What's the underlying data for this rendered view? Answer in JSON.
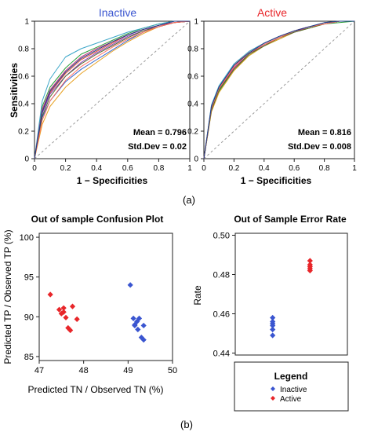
{
  "colors": {
    "inactive": "#3a55d0",
    "active": "#e8262a",
    "diag": "#9a9a9a",
    "axis": "#222222",
    "roc_palette": [
      "#3366cc",
      "#e0533a",
      "#2a9d3a",
      "#8a3db8",
      "#e8a020",
      "#3aa6c8",
      "#c03a7a",
      "#556b2f",
      "#ff6f61",
      "#1f3c88"
    ]
  },
  "panel_a": {
    "label": "(a)",
    "charts": [
      {
        "title": "Inactive",
        "stat_mean": "Mean = 0.796",
        "stat_sd": "Std.Dev = 0.02"
      },
      {
        "title": "Active",
        "stat_mean": "Mean = 0.816",
        "stat_sd": "Std.Dev = 0.008"
      }
    ]
  },
  "panel_b": {
    "label": "(b)",
    "legend": {
      "title": "Legend",
      "items": [
        {
          "label": "Inactive",
          "symbol": "diamond-icon"
        },
        {
          "label": "Active",
          "symbol": "diamond-icon"
        }
      ]
    }
  },
  "chart_data": [
    {
      "type": "line",
      "title": "Inactive",
      "xlabel": "1 − Specificities",
      "ylabel": "Sensitivities",
      "xlim": [
        0,
        1
      ],
      "ylim": [
        0,
        1
      ],
      "xticks": [
        "0",
        "0.2",
        "0.4",
        "0.6",
        "0.8",
        "1"
      ],
      "yticks": [
        "0",
        "0.2",
        "0.4",
        "0.6",
        "0.8",
        "1"
      ],
      "reference_line": [
        [
          0,
          0
        ],
        [
          1,
          1
        ]
      ],
      "annotations": [
        "Mean = 0.796",
        "Std.Dev = 0.02"
      ],
      "series": [
        {
          "x": [
            0,
            0.05,
            0.1,
            0.2,
            0.3,
            0.4,
            0.5,
            0.6,
            0.7,
            0.8,
            0.9,
            1
          ],
          "y": [
            0,
            0.3,
            0.42,
            0.56,
            0.65,
            0.72,
            0.79,
            0.86,
            0.92,
            0.96,
            0.99,
            1
          ]
        },
        {
          "x": [
            0,
            0.05,
            0.1,
            0.2,
            0.3,
            0.4,
            0.5,
            0.6,
            0.7,
            0.8,
            0.9,
            1
          ],
          "y": [
            0,
            0.35,
            0.48,
            0.62,
            0.72,
            0.78,
            0.84,
            0.9,
            0.94,
            0.97,
            0.99,
            1
          ]
        },
        {
          "x": [
            0,
            0.05,
            0.1,
            0.2,
            0.3,
            0.4,
            0.5,
            0.6,
            0.7,
            0.8,
            0.9,
            1
          ],
          "y": [
            0,
            0.38,
            0.52,
            0.66,
            0.76,
            0.81,
            0.86,
            0.91,
            0.95,
            0.98,
            1,
            1
          ]
        },
        {
          "x": [
            0,
            0.05,
            0.1,
            0.2,
            0.3,
            0.4,
            0.5,
            0.6,
            0.7,
            0.8,
            0.9,
            1
          ],
          "y": [
            0,
            0.33,
            0.47,
            0.6,
            0.7,
            0.77,
            0.83,
            0.89,
            0.93,
            0.97,
            0.99,
            1
          ]
        },
        {
          "x": [
            0,
            0.05,
            0.1,
            0.2,
            0.3,
            0.4,
            0.5,
            0.6,
            0.7,
            0.8,
            0.9,
            1
          ],
          "y": [
            0,
            0.25,
            0.38,
            0.52,
            0.62,
            0.7,
            0.78,
            0.85,
            0.91,
            0.96,
            0.99,
            1
          ]
        },
        {
          "x": [
            0,
            0.05,
            0.1,
            0.2,
            0.3,
            0.4,
            0.5,
            0.6,
            0.7,
            0.8,
            0.9,
            1
          ],
          "y": [
            0,
            0.42,
            0.58,
            0.74,
            0.8,
            0.84,
            0.88,
            0.92,
            0.95,
            0.98,
            1,
            1
          ]
        },
        {
          "x": [
            0,
            0.05,
            0.1,
            0.2,
            0.3,
            0.4,
            0.5,
            0.6,
            0.7,
            0.8,
            0.9,
            1
          ],
          "y": [
            0,
            0.36,
            0.5,
            0.64,
            0.74,
            0.8,
            0.85,
            0.9,
            0.94,
            0.97,
            0.99,
            1
          ]
        },
        {
          "x": [
            0,
            0.05,
            0.1,
            0.2,
            0.3,
            0.4,
            0.5,
            0.6,
            0.7,
            0.8,
            0.9,
            1
          ],
          "y": [
            0,
            0.31,
            0.45,
            0.6,
            0.69,
            0.76,
            0.82,
            0.88,
            0.93,
            0.96,
            0.99,
            1
          ]
        },
        {
          "x": [
            0,
            0.05,
            0.1,
            0.2,
            0.3,
            0.4,
            0.5,
            0.6,
            0.7,
            0.8,
            0.9,
            1
          ],
          "y": [
            0,
            0.28,
            0.42,
            0.57,
            0.67,
            0.74,
            0.81,
            0.87,
            0.92,
            0.96,
            0.99,
            1
          ]
        },
        {
          "x": [
            0,
            0.05,
            0.1,
            0.2,
            0.3,
            0.4,
            0.5,
            0.6,
            0.7,
            0.8,
            0.9,
            1
          ],
          "y": [
            0,
            0.34,
            0.49,
            0.63,
            0.73,
            0.79,
            0.85,
            0.9,
            0.94,
            0.97,
            1,
            1
          ]
        }
      ]
    },
    {
      "type": "line",
      "title": "Active",
      "xlabel": "1 − Specificities",
      "ylabel": "",
      "xlim": [
        0,
        1
      ],
      "ylim": [
        0,
        1
      ],
      "xticks": [
        "0",
        "0.2",
        "0.4",
        "0.6",
        "0.8",
        "1"
      ],
      "yticks": [
        "0",
        "0.2",
        "0.4",
        "0.6",
        "0.8",
        "1"
      ],
      "reference_line": [
        [
          0,
          0
        ],
        [
          1,
          1
        ]
      ],
      "annotations": [
        "Mean = 0.816",
        "Std.Dev = 0.008"
      ],
      "series": [
        {
          "x": [
            0,
            0.05,
            0.1,
            0.2,
            0.3,
            0.4,
            0.5,
            0.6,
            0.7,
            0.8,
            0.9,
            1
          ],
          "y": [
            0,
            0.36,
            0.5,
            0.66,
            0.76,
            0.83,
            0.88,
            0.92,
            0.96,
            0.98,
            1,
            1
          ]
        },
        {
          "x": [
            0,
            0.05,
            0.1,
            0.2,
            0.3,
            0.4,
            0.5,
            0.6,
            0.7,
            0.8,
            0.9,
            1
          ],
          "y": [
            0,
            0.38,
            0.52,
            0.68,
            0.78,
            0.84,
            0.89,
            0.93,
            0.96,
            0.98,
            1,
            1
          ]
        },
        {
          "x": [
            0,
            0.05,
            0.1,
            0.2,
            0.3,
            0.4,
            0.5,
            0.6,
            0.7,
            0.8,
            0.9,
            1
          ],
          "y": [
            0,
            0.35,
            0.49,
            0.65,
            0.75,
            0.82,
            0.87,
            0.92,
            0.95,
            0.98,
            0.99,
            1
          ]
        },
        {
          "x": [
            0,
            0.05,
            0.1,
            0.2,
            0.3,
            0.4,
            0.5,
            0.6,
            0.7,
            0.8,
            0.9,
            1
          ],
          "y": [
            0,
            0.37,
            0.51,
            0.67,
            0.77,
            0.83,
            0.88,
            0.93,
            0.96,
            0.98,
            1,
            1
          ]
        },
        {
          "x": [
            0,
            0.05,
            0.1,
            0.2,
            0.3,
            0.4,
            0.5,
            0.6,
            0.7,
            0.8,
            0.9,
            1
          ],
          "y": [
            0,
            0.34,
            0.48,
            0.64,
            0.75,
            0.82,
            0.87,
            0.92,
            0.95,
            0.98,
            1,
            1
          ]
        },
        {
          "x": [
            0,
            0.05,
            0.1,
            0.2,
            0.3,
            0.4,
            0.5,
            0.6,
            0.7,
            0.8,
            0.9,
            1
          ],
          "y": [
            0,
            0.39,
            0.53,
            0.69,
            0.78,
            0.84,
            0.89,
            0.93,
            0.96,
            0.99,
            1,
            1
          ]
        },
        {
          "x": [
            0,
            0.05,
            0.1,
            0.2,
            0.3,
            0.4,
            0.5,
            0.6,
            0.7,
            0.8,
            0.9,
            1
          ],
          "y": [
            0,
            0.36,
            0.5,
            0.66,
            0.76,
            0.83,
            0.88,
            0.92,
            0.96,
            0.98,
            1,
            1
          ]
        },
        {
          "x": [
            0,
            0.05,
            0.1,
            0.2,
            0.3,
            0.4,
            0.5,
            0.6,
            0.7,
            0.8,
            0.9,
            1
          ],
          "y": [
            0,
            0.35,
            0.5,
            0.65,
            0.76,
            0.82,
            0.88,
            0.92,
            0.95,
            0.98,
            1,
            1
          ]
        },
        {
          "x": [
            0,
            0.05,
            0.1,
            0.2,
            0.3,
            0.4,
            0.5,
            0.6,
            0.7,
            0.8,
            0.9,
            1
          ],
          "y": [
            0,
            0.37,
            0.51,
            0.67,
            0.77,
            0.83,
            0.88,
            0.93,
            0.96,
            0.98,
            1,
            1
          ]
        },
        {
          "x": [
            0,
            0.05,
            0.1,
            0.2,
            0.3,
            0.4,
            0.5,
            0.6,
            0.7,
            0.8,
            0.9,
            1
          ],
          "y": [
            0,
            0.38,
            0.52,
            0.68,
            0.77,
            0.84,
            0.89,
            0.93,
            0.96,
            0.99,
            1,
            1
          ]
        }
      ]
    },
    {
      "type": "scatter",
      "title": "Out of sample Confusion Plot",
      "xlabel": "Predicted TN / Observed TN (%)",
      "ylabel": "Predicted TP / Observed TP (%)",
      "xlim": [
        47,
        50
      ],
      "ylim": [
        84.5,
        100.5
      ],
      "xticks": [
        "47",
        "48",
        "49",
        "50"
      ],
      "yticks": [
        "85",
        "90",
        "95",
        "100"
      ],
      "series": [
        {
          "name": "Active",
          "color_key": "active",
          "points": [
            [
              47.25,
              92.8
            ],
            [
              47.45,
              90.9
            ],
            [
              47.5,
              90.4
            ],
            [
              47.55,
              91.1
            ],
            [
              47.6,
              89.9
            ],
            [
              47.65,
              88.6
            ],
            [
              47.7,
              88.3
            ],
            [
              47.75,
              91.3
            ],
            [
              47.85,
              89.7
            ],
            [
              47.55,
              90.6
            ]
          ]
        },
        {
          "name": "Inactive",
          "color_key": "inactive",
          "points": [
            [
              49.05,
              94.0
            ],
            [
              49.12,
              89.8
            ],
            [
              49.15,
              88.9
            ],
            [
              49.2,
              89.4
            ],
            [
              49.22,
              88.4
            ],
            [
              49.25,
              89.8
            ],
            [
              49.3,
              87.4
            ],
            [
              49.35,
              87.1
            ],
            [
              49.35,
              88.9
            ],
            [
              49.15,
              89.0
            ]
          ]
        }
      ]
    },
    {
      "type": "scatter",
      "title": "Out of Sample Error Rate",
      "xlabel": "",
      "ylabel": "Rate",
      "ylim": [
        0.439,
        0.501
      ],
      "yticks": [
        "0.44",
        "0.46",
        "0.48",
        "0.50"
      ],
      "series": [
        {
          "name": "Inactive",
          "color_key": "inactive",
          "values": [
            0.458,
            0.456,
            0.454,
            0.452,
            0.449,
            0.455
          ]
        },
        {
          "name": "Active",
          "color_key": "active",
          "values": [
            0.487,
            0.485,
            0.484,
            0.483,
            0.482
          ]
        }
      ]
    }
  ]
}
